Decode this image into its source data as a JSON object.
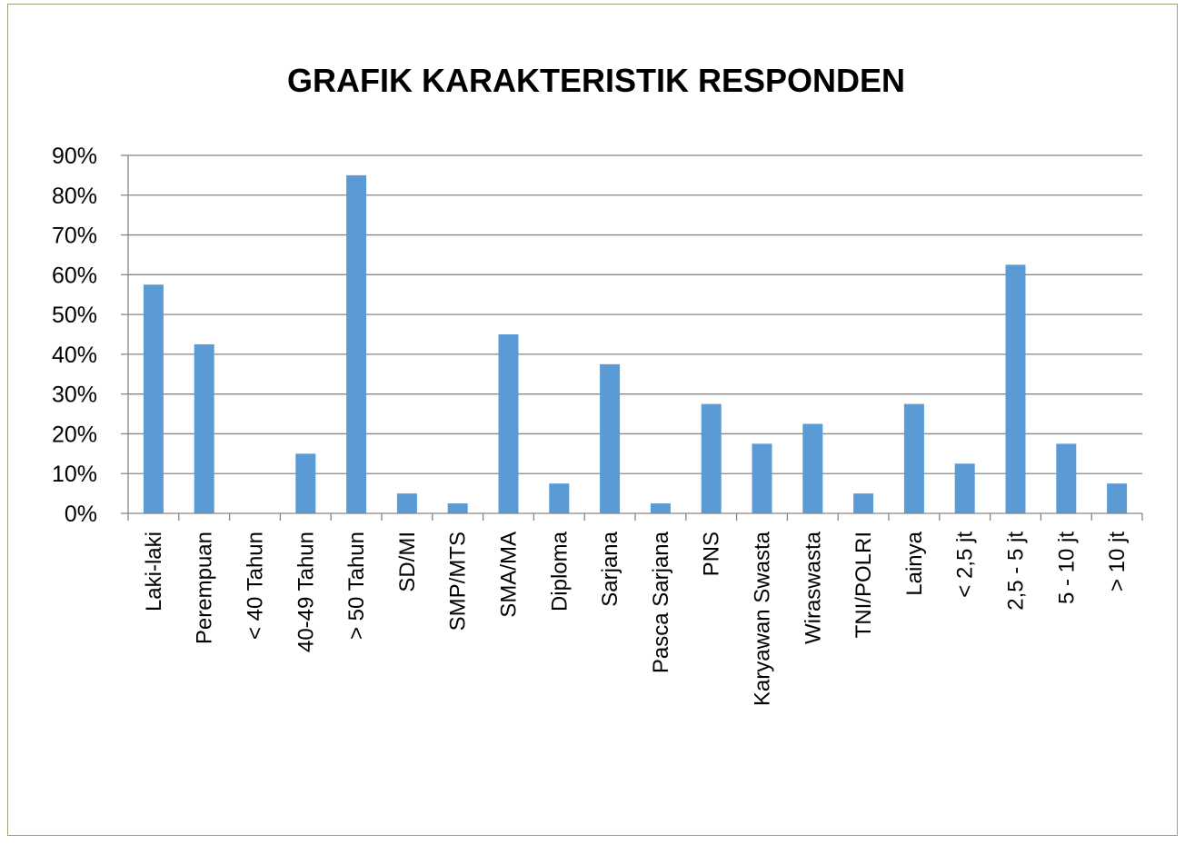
{
  "chart_data": {
    "type": "bar",
    "title": "GRAFIK KARAKTERISTIK RESPONDEN",
    "xlabel": "",
    "ylabel": "",
    "ylim": [
      0,
      0.9
    ],
    "yticks": [
      "0%",
      "10%",
      "20%",
      "30%",
      "40%",
      "50%",
      "60%",
      "70%",
      "80%",
      "90%"
    ],
    "grid": true,
    "categories": [
      "Laki-laki",
      "Perempuan",
      "< 40 Tahun",
      "40-49 Tahun",
      "> 50 Tahun",
      "SD/MI",
      "SMP/MTS",
      "SMA/MA",
      "Diploma",
      "Sarjana",
      "Pasca Sarjana",
      "PNS",
      "Karyawan Swasta",
      "Wiraswasta",
      "TNI/POLRI",
      "Lainya",
      "< 2,5 jt",
      "2,5 - 5 jt",
      "5 - 10 jt",
      "> 10 jt"
    ],
    "values": [
      0.575,
      0.425,
      0,
      0.15,
      0.85,
      0.05,
      0.025,
      0.45,
      0.075,
      0.375,
      0.025,
      0.275,
      0.175,
      0.225,
      0.05,
      0.275,
      0.125,
      0.625,
      0.175,
      0.075
    ],
    "colors": {
      "bar": "#5b9bd5",
      "grid": "#868686",
      "axis": "#868686",
      "border": "#a3a07a"
    }
  }
}
